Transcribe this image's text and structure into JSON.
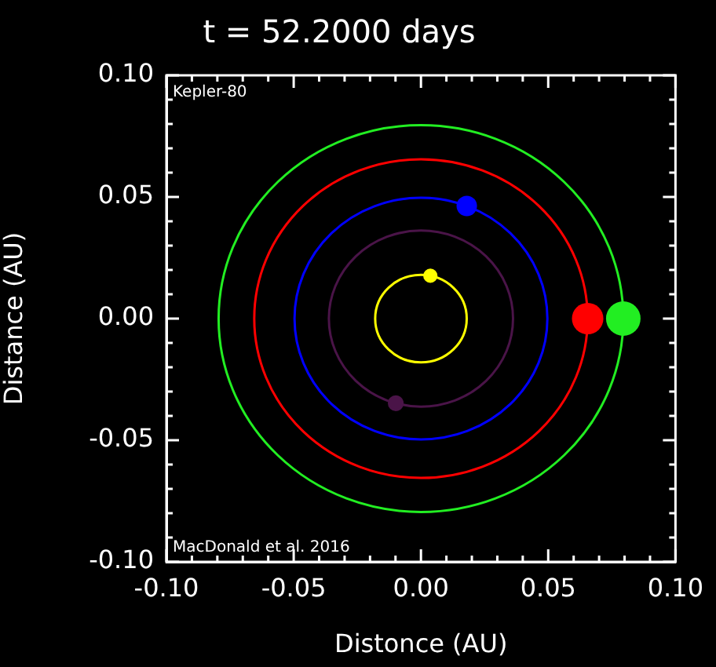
{
  "chart_data": {
    "type": "bubble",
    "title": "t = 52.2000 days",
    "xlabel": "Distonce (AU)",
    "ylabel": "Distance (AU)",
    "annotations": [
      "Kepler-80",
      "MacDonald et al. 2016"
    ],
    "xlim": [
      -0.1,
      0.1
    ],
    "ylim": [
      -0.1,
      0.1
    ],
    "xticks": [
      {
        "value": -0.1,
        "label": "-0.10"
      },
      {
        "value": -0.09,
        "label": null
      },
      {
        "value": -0.08,
        "label": null
      },
      {
        "value": -0.07,
        "label": null
      },
      {
        "value": -0.06,
        "label": null
      },
      {
        "value": -0.05,
        "label": "-0.05"
      },
      {
        "value": -0.04,
        "label": null
      },
      {
        "value": -0.03,
        "label": null
      },
      {
        "value": -0.02,
        "label": null
      },
      {
        "value": -0.01,
        "label": null
      },
      {
        "value": 0,
        "label": "0.00"
      },
      {
        "value": 0.01,
        "label": null
      },
      {
        "value": 0.02,
        "label": null
      },
      {
        "value": 0.03,
        "label": null
      },
      {
        "value": 0.04,
        "label": null
      },
      {
        "value": 0.05,
        "label": "0.05"
      },
      {
        "value": 0.06,
        "label": null
      },
      {
        "value": 0.07,
        "label": null
      },
      {
        "value": 0.08,
        "label": null
      },
      {
        "value": 0.09,
        "label": null
      },
      {
        "value": 0.1,
        "label": "0.10"
      }
    ],
    "yticks": [
      {
        "value": -0.1,
        "label": "-0.10"
      },
      {
        "value": -0.09,
        "label": null
      },
      {
        "value": -0.08,
        "label": null
      },
      {
        "value": -0.07,
        "label": null
      },
      {
        "value": -0.06,
        "label": null
      },
      {
        "value": -0.05,
        "label": "-0.05"
      },
      {
        "value": -0.04,
        "label": null
      },
      {
        "value": -0.03,
        "label": null
      },
      {
        "value": -0.02,
        "label": null
      },
      {
        "value": -0.01,
        "label": null
      },
      {
        "value": 0,
        "label": "0.00"
      },
      {
        "value": 0.01,
        "label": null
      },
      {
        "value": 0.02,
        "label": null
      },
      {
        "value": 0.03,
        "label": null
      },
      {
        "value": 0.04,
        "label": null
      },
      {
        "value": 0.05,
        "label": "0.05"
      },
      {
        "value": 0.06,
        "label": null
      },
      {
        "value": 0.07,
        "label": null
      },
      {
        "value": 0.08,
        "label": null
      },
      {
        "value": 0.09,
        "label": null
      },
      {
        "value": 0.1,
        "label": "0.10"
      }
    ],
    "grid": false,
    "legend": false,
    "series": [
      {
        "color": "#ffff00",
        "x": [
          0.0037
        ],
        "values": [
          0.0176
        ],
        "sizes": [
          0.17
        ]
      },
      {
        "color": "#4a1448",
        "x": [
          -0.0099
        ],
        "values": [
          -0.0348
        ],
        "sizes": [
          0.21
        ]
      },
      {
        "color": "#0000ff",
        "x": [
          0.018
        ],
        "values": [
          0.0463
        ],
        "sizes": [
          0.35
        ]
      },
      {
        "color": "#ff0000",
        "x": [
          0.0655
        ],
        "values": [
          0
        ],
        "sizes": [
          0.83
        ]
      },
      {
        "color": "#22ee22",
        "x": [
          0.0795
        ],
        "values": [
          0
        ],
        "sizes": [
          1
        ]
      }
    ]
  }
}
